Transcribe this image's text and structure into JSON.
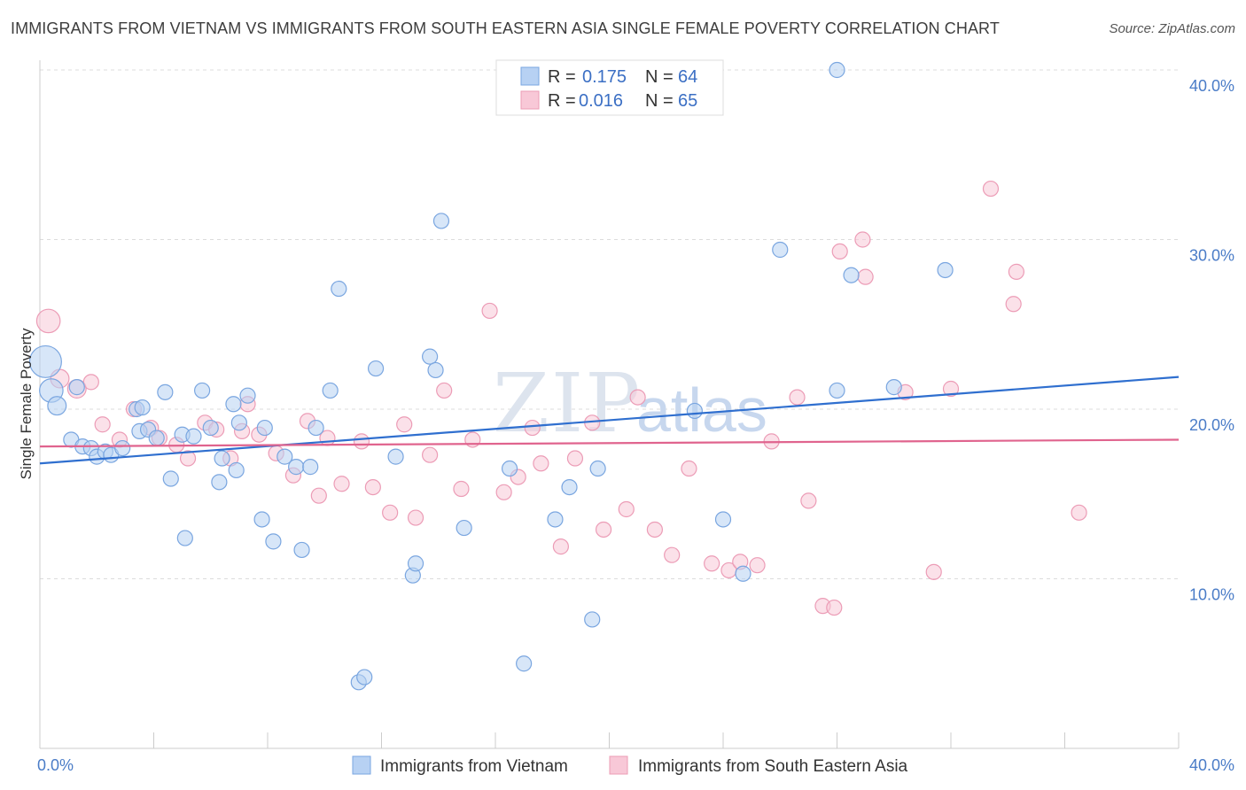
{
  "header": {
    "title": "IMMIGRANTS FROM VIETNAM VS IMMIGRANTS FROM SOUTH EASTERN ASIA SINGLE FEMALE POVERTY CORRELATION CHART",
    "source": "Source: ZipAtlas.com"
  },
  "watermark": {
    "zip": "ZIP",
    "atlas": "atlas"
  },
  "legend_top": {
    "r_label": "R =",
    "n_label": "N =",
    "rows": [
      {
        "r": "0.175",
        "n": "64"
      },
      {
        "r": "0.016",
        "n": "65"
      }
    ]
  },
  "chart_data": {
    "type": "scatter",
    "title": "IMMIGRANTS FROM VIETNAM VS IMMIGRANTS FROM SOUTH EASTERN ASIA SINGLE FEMALE POVERTY CORRELATION CHART",
    "ylabel": "Single Female Poverty",
    "xlim": [
      0,
      40
    ],
    "ylim": [
      0,
      40
    ],
    "y_ticks": [
      "10.0%",
      "20.0%",
      "30.0%",
      "40.0%"
    ],
    "x_ticks": [
      "0.0%",
      "40.0%"
    ],
    "grid": "horizontal dashed",
    "legend_position": "bottom",
    "colors": {
      "vietnam_fill": "#b7d1f3",
      "vietnam_stroke": "#7aa6e0",
      "vietnam_line": "#2f6fcf",
      "sea_fill": "#f8c8d7",
      "sea_stroke": "#ec9cb6",
      "sea_line": "#e0648e"
    },
    "series": [
      {
        "name": "Immigrants from Vietnam",
        "trend": [
          [
            0,
            16.8
          ],
          [
            40,
            21.9
          ]
        ],
        "points": [
          [
            0.2,
            22.8,
            1.9
          ],
          [
            0.4,
            21.1,
            1.4
          ],
          [
            0.6,
            20.2,
            1.1
          ],
          [
            1.1,
            18.2,
            0.9
          ],
          [
            1.3,
            21.3,
            0.9
          ],
          [
            1.5,
            17.8,
            0.9
          ],
          [
            1.8,
            17.7,
            0.9
          ],
          [
            2.0,
            17.2,
            0.9
          ],
          [
            2.3,
            17.5,
            0.9
          ],
          [
            2.5,
            17.3,
            0.9
          ],
          [
            2.9,
            17.7,
            0.9
          ],
          [
            3.5,
            18.7,
            0.9
          ],
          [
            3.4,
            20.0,
            0.9
          ],
          [
            3.6,
            20.1,
            0.9
          ],
          [
            3.8,
            18.8,
            0.9
          ],
          [
            4.1,
            18.3,
            0.9
          ],
          [
            4.4,
            21.0,
            0.9
          ],
          [
            4.6,
            15.9,
            0.9
          ],
          [
            5.0,
            18.5,
            0.9
          ],
          [
            5.1,
            12.4,
            0.9
          ],
          [
            5.4,
            18.4,
            0.9
          ],
          [
            5.7,
            21.1,
            0.9
          ],
          [
            6.0,
            18.9,
            0.9
          ],
          [
            6.3,
            15.7,
            0.9
          ],
          [
            6.4,
            17.1,
            0.9
          ],
          [
            6.8,
            20.3,
            0.9
          ],
          [
            6.9,
            16.4,
            0.9
          ],
          [
            7.0,
            19.2,
            0.9
          ],
          [
            7.3,
            20.8,
            0.9
          ],
          [
            7.8,
            13.5,
            0.9
          ],
          [
            7.9,
            18.9,
            0.9
          ],
          [
            8.2,
            12.2,
            0.9
          ],
          [
            8.6,
            17.2,
            0.9
          ],
          [
            9.0,
            16.6,
            0.9
          ],
          [
            9.2,
            11.7,
            0.9
          ],
          [
            9.5,
            16.6,
            0.9
          ],
          [
            9.7,
            18.9,
            0.9
          ],
          [
            10.2,
            21.1,
            0.9
          ],
          [
            10.5,
            27.1,
            0.9
          ],
          [
            11.2,
            3.9,
            0.9
          ],
          [
            11.4,
            4.2,
            0.9
          ],
          [
            11.8,
            22.4,
            0.9
          ],
          [
            12.5,
            17.2,
            0.9
          ],
          [
            13.1,
            10.2,
            0.9
          ],
          [
            13.2,
            10.9,
            0.9
          ],
          [
            13.7,
            23.1,
            0.9
          ],
          [
            13.9,
            22.3,
            0.9
          ],
          [
            14.1,
            31.1,
            0.9
          ],
          [
            14.9,
            13.0,
            0.9
          ],
          [
            16.5,
            16.5,
            0.9
          ],
          [
            17.0,
            5.0,
            0.9
          ],
          [
            18.1,
            13.5,
            0.9
          ],
          [
            18.6,
            15.4,
            0.9
          ],
          [
            19.4,
            7.6,
            0.9
          ],
          [
            19.6,
            16.5,
            0.9
          ],
          [
            23.0,
            19.9,
            0.9
          ],
          [
            24.0,
            13.5,
            0.9
          ],
          [
            24.7,
            10.3,
            0.9
          ],
          [
            26.0,
            29.4,
            0.9
          ],
          [
            28.0,
            40.0,
            0.9
          ],
          [
            28.0,
            21.1,
            0.9
          ],
          [
            28.5,
            27.9,
            0.9
          ],
          [
            30.0,
            21.3,
            0.9
          ],
          [
            31.8,
            28.2,
            0.9
          ]
        ]
      },
      {
        "name": "Immigrants from South Eastern Asia",
        "trend": [
          [
            0,
            17.8
          ],
          [
            40,
            18.2
          ]
        ],
        "points": [
          [
            0.3,
            25.2,
            1.4
          ],
          [
            0.7,
            21.8,
            1.1
          ],
          [
            1.3,
            21.2,
            1.1
          ],
          [
            1.8,
            21.6,
            0.9
          ],
          [
            2.2,
            19.1,
            0.9
          ],
          [
            2.8,
            18.2,
            0.9
          ],
          [
            3.3,
            20.0,
            0.9
          ],
          [
            3.9,
            18.9,
            0.9
          ],
          [
            4.2,
            18.3,
            0.9
          ],
          [
            4.8,
            17.9,
            0.9
          ],
          [
            5.2,
            17.1,
            0.9
          ],
          [
            5.8,
            19.2,
            0.9
          ],
          [
            6.2,
            18.8,
            0.9
          ],
          [
            6.7,
            17.1,
            0.9
          ],
          [
            7.1,
            18.7,
            0.9
          ],
          [
            7.3,
            20.3,
            0.9
          ],
          [
            7.7,
            18.5,
            0.9
          ],
          [
            8.3,
            17.4,
            0.9
          ],
          [
            8.9,
            16.1,
            0.9
          ],
          [
            9.4,
            19.3,
            0.9
          ],
          [
            9.8,
            14.9,
            0.9
          ],
          [
            10.1,
            18.3,
            0.9
          ],
          [
            10.6,
            15.6,
            0.9
          ],
          [
            11.3,
            18.1,
            0.9
          ],
          [
            11.7,
            15.4,
            0.9
          ],
          [
            12.3,
            13.9,
            0.9
          ],
          [
            12.8,
            19.1,
            0.9
          ],
          [
            13.2,
            13.6,
            0.9
          ],
          [
            13.7,
            17.3,
            0.9
          ],
          [
            14.2,
            21.1,
            0.9
          ],
          [
            14.8,
            15.3,
            0.9
          ],
          [
            15.2,
            18.2,
            0.9
          ],
          [
            15.8,
            25.8,
            0.9
          ],
          [
            16.3,
            15.1,
            0.9
          ],
          [
            16.8,
            16.0,
            0.9
          ],
          [
            17.3,
            18.9,
            0.9
          ],
          [
            17.6,
            16.8,
            0.9
          ],
          [
            18.3,
            11.9,
            0.9
          ],
          [
            18.8,
            17.1,
            0.9
          ],
          [
            19.4,
            19.2,
            0.9
          ],
          [
            19.8,
            12.9,
            0.9
          ],
          [
            20.6,
            14.1,
            0.9
          ],
          [
            21.0,
            20.7,
            0.9
          ],
          [
            21.6,
            12.9,
            0.9
          ],
          [
            22.2,
            11.4,
            0.9
          ],
          [
            22.8,
            16.5,
            0.9
          ],
          [
            23.6,
            10.9,
            0.9
          ],
          [
            24.2,
            10.5,
            0.9
          ],
          [
            24.6,
            11.0,
            0.9
          ],
          [
            25.2,
            10.8,
            0.9
          ],
          [
            25.7,
            18.1,
            0.9
          ],
          [
            26.6,
            20.7,
            0.9
          ],
          [
            27.0,
            14.6,
            0.9
          ],
          [
            27.5,
            8.4,
            0.9
          ],
          [
            27.9,
            8.3,
            0.9
          ],
          [
            28.1,
            29.3,
            0.9
          ],
          [
            29.0,
            27.8,
            0.9
          ],
          [
            28.9,
            30.0,
            0.9
          ],
          [
            30.4,
            21.0,
            0.9
          ],
          [
            31.4,
            10.4,
            0.9
          ],
          [
            32.0,
            21.2,
            0.9
          ],
          [
            33.4,
            33.0,
            0.9
          ],
          [
            34.2,
            26.2,
            0.9
          ],
          [
            34.3,
            28.1,
            0.9
          ],
          [
            36.5,
            13.9,
            0.9
          ]
        ]
      }
    ]
  },
  "legend_bottom": [
    {
      "label": "Immigrants from Vietnam"
    },
    {
      "label": "Immigrants from South Eastern Asia"
    }
  ]
}
